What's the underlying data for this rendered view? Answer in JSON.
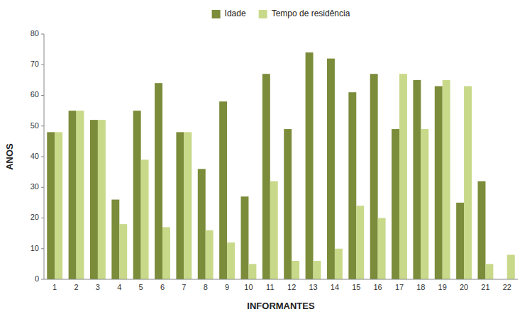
{
  "chart_data": {
    "type": "bar",
    "xlabel": "INFORMANTES",
    "ylabel": "ANOS",
    "categories": [
      "1",
      "2",
      "3",
      "4",
      "5",
      "6",
      "7",
      "8",
      "9",
      "10",
      "11",
      "12",
      "13",
      "14",
      "15",
      "16",
      "17",
      "18",
      "19",
      "20",
      "21",
      "22"
    ],
    "series": [
      {
        "name": "Idade",
        "color": "#7b8c3a",
        "values": [
          48,
          55,
          52,
          26,
          55,
          64,
          48,
          36,
          58,
          27,
          67,
          49,
          74,
          72,
          61,
          67,
          49,
          65,
          63,
          25,
          32,
          0
        ]
      },
      {
        "name": "Tempo de residência",
        "color": "#c8d98a",
        "values": [
          48,
          55,
          52,
          18,
          39,
          17,
          48,
          16,
          12,
          5,
          32,
          6,
          6,
          10,
          24,
          20,
          67,
          49,
          65,
          63,
          5,
          8
        ]
      }
    ],
    "ylim": [
      0,
      80
    ],
    "yticks": [
      0,
      10,
      20,
      30,
      40,
      50,
      60,
      70,
      80
    ],
    "grid": false,
    "legend": "top"
  }
}
